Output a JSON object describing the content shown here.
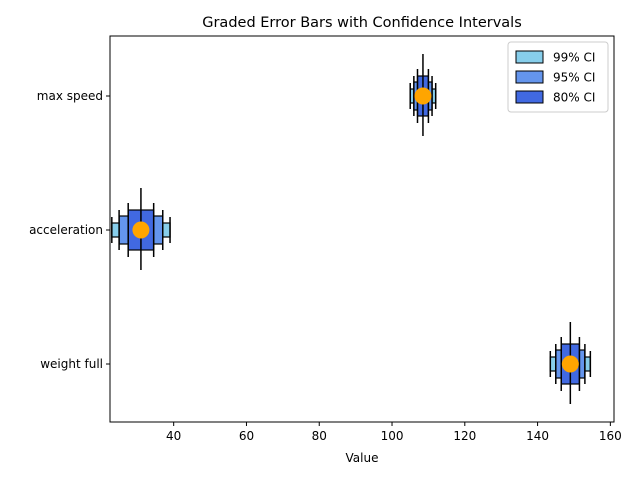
{
  "chart_data": {
    "type": "graded-error-bar",
    "title": "Graded Error Bars with Confidence Intervals",
    "xlabel": "Value",
    "ylabel": "",
    "xlim": [
      22.5,
      161
    ],
    "xticks": [
      40,
      60,
      80,
      100,
      120,
      140,
      160
    ],
    "categories": [
      "max speed",
      "acceleration",
      "weight full"
    ],
    "legend": {
      "position": "top-right",
      "entries": [
        {
          "label": "99% CI",
          "color": "#87ceeb"
        },
        {
          "label": "95% CI",
          "color": "#6495ed"
        },
        {
          "label": "80% CI",
          "color": "#4169e1"
        }
      ]
    },
    "marker_color": "#ffa500",
    "points": [
      {
        "category": "max speed",
        "value": 108.5,
        "ci99": [
          105.0,
          112.0
        ],
        "ci95": [
          106.0,
          111.0
        ],
        "ci80": [
          107.0,
          110.0
        ]
      },
      {
        "category": "acceleration",
        "value": 31,
        "ci99": [
          23.0,
          39.0
        ],
        "ci95": [
          25.0,
          37.0
        ],
        "ci80": [
          27.5,
          34.5
        ]
      },
      {
        "category": "weight full",
        "value": 149,
        "ci99": [
          143.5,
          154.5
        ],
        "ci95": [
          145.0,
          153.0
        ],
        "ci80": [
          146.5,
          151.5
        ]
      }
    ]
  }
}
